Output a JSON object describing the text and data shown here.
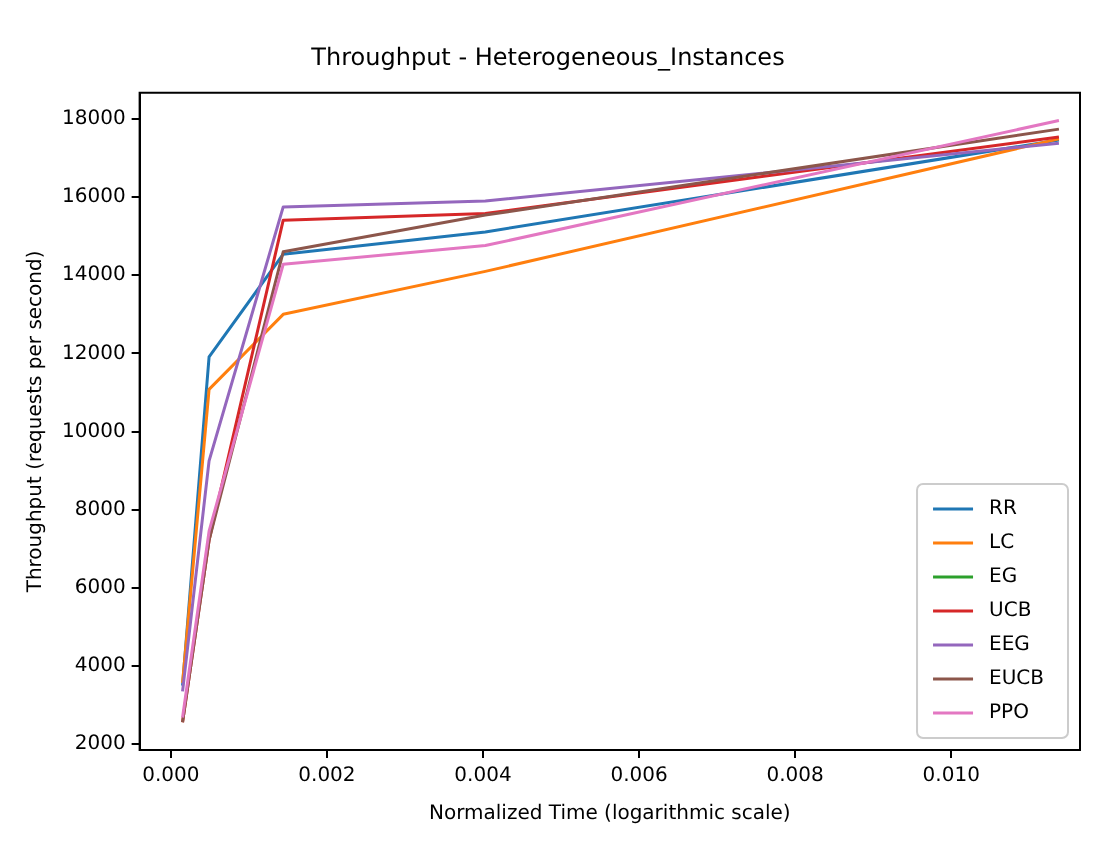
{
  "chart_data": {
    "type": "line",
    "title": "Throughput - Heterogeneous_Instances",
    "xlabel": "Normalized Time (logarithmic scale)",
    "ylabel": "Throughput (requests per second)",
    "x": [
      0.00015,
      0.00049,
      0.00144,
      0.00403,
      0.01138
    ],
    "series": [
      {
        "name": "RR",
        "color": "#1f77b4",
        "values": [
          3500,
          11910,
          14540,
          15110,
          17460
        ]
      },
      {
        "name": "LC",
        "color": "#ff7f0e",
        "values": [
          3570,
          11080,
          13000,
          14100,
          17490
        ]
      },
      {
        "name": "EG",
        "color": "#2ca02c",
        "values": [
          null,
          null,
          null,
          null,
          null
        ]
      },
      {
        "name": "UCB",
        "color": "#d62728",
        "values": [
          2560,
          7220,
          15410,
          15580,
          17540
        ]
      },
      {
        "name": "EEG",
        "color": "#9467bd",
        "values": [
          3350,
          9250,
          15750,
          15900,
          17380
        ]
      },
      {
        "name": "EUCB",
        "color": "#8c564b",
        "values": [
          2560,
          7220,
          14600,
          15540,
          17740
        ]
      },
      {
        "name": "PPO",
        "color": "#e377c2",
        "values": [
          2680,
          7450,
          14280,
          14760,
          17960
        ]
      }
    ],
    "xlim": [
      -0.0004,
      0.01165
    ],
    "ylim": [
      1850,
      18670
    ],
    "xticks": [
      {
        "value": 0,
        "label": "0.000"
      },
      {
        "value": 0.002,
        "label": "0.002"
      },
      {
        "value": 0.004,
        "label": "0.004"
      },
      {
        "value": 0.006,
        "label": "0.006"
      },
      {
        "value": 0.008,
        "label": "0.008"
      },
      {
        "value": 0.01,
        "label": "0.010"
      }
    ],
    "yticks": [
      2000,
      4000,
      6000,
      8000,
      10000,
      12000,
      14000,
      16000,
      18000
    ],
    "grid": false,
    "legend": "bottom right",
    "marker": "none",
    "line_style": "solid"
  }
}
